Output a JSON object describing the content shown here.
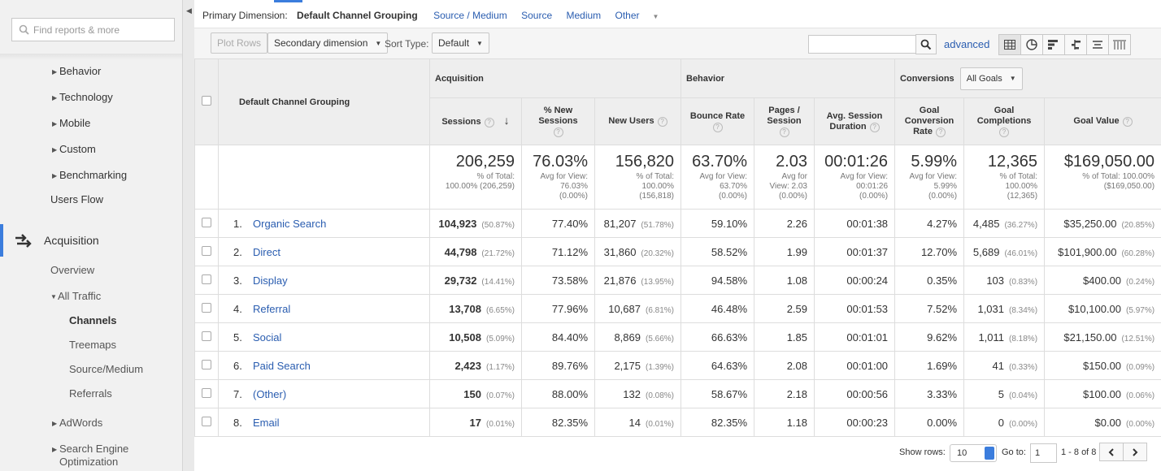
{
  "sidebar": {
    "search_placeholder": "Find reports & more",
    "items": [
      {
        "label": "Behavior"
      },
      {
        "label": "Technology"
      },
      {
        "label": "Mobile"
      },
      {
        "label": "Custom"
      },
      {
        "label": "Benchmarking"
      },
      {
        "label": "Users Flow"
      },
      {
        "label": "Acquisition"
      },
      {
        "label": "Overview"
      },
      {
        "label": "All Traffic"
      },
      {
        "label": "Channels"
      },
      {
        "label": "Treemaps"
      },
      {
        "label": "Source/Medium"
      },
      {
        "label": "Referrals"
      },
      {
        "label": "AdWords"
      },
      {
        "label": "Search Engine"
      },
      {
        "label": "Optimization"
      }
    ]
  },
  "dimension_bar": {
    "label": "Primary Dimension:",
    "current": "Default Channel Grouping",
    "options": [
      "Source / Medium",
      "Source",
      "Medium",
      "Other"
    ]
  },
  "toolbar": {
    "plot_rows": "Plot Rows",
    "secondary_dimension": "Secondary dimension",
    "sort_type_label": "Sort Type:",
    "sort_type_value": "Default",
    "advanced": "advanced"
  },
  "table": {
    "dimension_header": "Default Channel Grouping",
    "groups": {
      "acquisition": "Acquisition",
      "behavior": "Behavior",
      "conversions": "Conversions",
      "goals_select": "All Goals"
    },
    "columns": {
      "sessions": "Sessions",
      "new_sessions_1": "% New",
      "new_sessions_2": "Sessions",
      "new_users": "New Users",
      "bounce_1": "Bounce Rate",
      "pages_1": "Pages /",
      "pages_2": "Session",
      "dur_1": "Avg. Session",
      "dur_2": "Duration",
      "gcr_1": "Goal",
      "gcr_2": "Conversion",
      "gcr_3": "Rate",
      "gc_1": "Goal",
      "gc_2": "Completions",
      "gv": "Goal Value"
    },
    "totals": {
      "sessions": {
        "value": "206,259",
        "l1": "% of Total:",
        "l2": "100.00% (206,259)"
      },
      "new_sessions": {
        "value": "76.03%",
        "l1": "Avg for View:",
        "l2": "76.03%",
        "l3": "(0.00%)"
      },
      "new_users": {
        "value": "156,820",
        "l1": "% of Total:",
        "l2": "100.00%",
        "l3": "(156,818)"
      },
      "bounce": {
        "value": "63.70%",
        "l1": "Avg for View:",
        "l2": "63.70%",
        "l3": "(0.00%)"
      },
      "pages": {
        "value": "2.03",
        "l1": "Avg for",
        "l2": "View: 2.03",
        "l3": "(0.00%)"
      },
      "duration": {
        "value": "00:01:26",
        "l1": "Avg for View:",
        "l2": "00:01:26",
        "l3": "(0.00%)"
      },
      "gcr": {
        "value": "5.99%",
        "l1": "Avg for View:",
        "l2": "5.99%",
        "l3": "(0.00%)"
      },
      "gc": {
        "value": "12,365",
        "l1": "% of Total:",
        "l2": "100.00%",
        "l3": "(12,365)"
      },
      "gv": {
        "value": "$169,050.00",
        "l1": "% of Total: 100.00%",
        "l2": "($169,050.00)"
      }
    },
    "rows": [
      {
        "num": "1.",
        "name": "Organic Search",
        "sessions": "104,923",
        "sessions_pct": "(50.87%)",
        "new_sessions": "77.40%",
        "new_users": "81,207",
        "new_users_pct": "(51.78%)",
        "bounce": "59.10%",
        "pages": "2.26",
        "duration": "00:01:38",
        "gcr": "4.27%",
        "gc": "4,485",
        "gc_pct": "(36.27%)",
        "gv": "$35,250.00",
        "gv_pct": "(20.85%)"
      },
      {
        "num": "2.",
        "name": "Direct",
        "sessions": "44,798",
        "sessions_pct": "(21.72%)",
        "new_sessions": "71.12%",
        "new_users": "31,860",
        "new_users_pct": "(20.32%)",
        "bounce": "58.52%",
        "pages": "1.99",
        "duration": "00:01:37",
        "gcr": "12.70%",
        "gc": "5,689",
        "gc_pct": "(46.01%)",
        "gv": "$101,900.00",
        "gv_pct": "(60.28%)"
      },
      {
        "num": "3.",
        "name": "Display",
        "sessions": "29,732",
        "sessions_pct": "(14.41%)",
        "new_sessions": "73.58%",
        "new_users": "21,876",
        "new_users_pct": "(13.95%)",
        "bounce": "94.58%",
        "pages": "1.08",
        "duration": "00:00:24",
        "gcr": "0.35%",
        "gc": "103",
        "gc_pct": "(0.83%)",
        "gv": "$400.00",
        "gv_pct": "(0.24%)"
      },
      {
        "num": "4.",
        "name": "Referral",
        "sessions": "13,708",
        "sessions_pct": "(6.65%)",
        "new_sessions": "77.96%",
        "new_users": "10,687",
        "new_users_pct": "(6.81%)",
        "bounce": "46.48%",
        "pages": "2.59",
        "duration": "00:01:53",
        "gcr": "7.52%",
        "gc": "1,031",
        "gc_pct": "(8.34%)",
        "gv": "$10,100.00",
        "gv_pct": "(5.97%)"
      },
      {
        "num": "5.",
        "name": "Social",
        "sessions": "10,508",
        "sessions_pct": "(5.09%)",
        "new_sessions": "84.40%",
        "new_users": "8,869",
        "new_users_pct": "(5.66%)",
        "bounce": "66.63%",
        "pages": "1.85",
        "duration": "00:01:01",
        "gcr": "9.62%",
        "gc": "1,011",
        "gc_pct": "(8.18%)",
        "gv": "$21,150.00",
        "gv_pct": "(12.51%)"
      },
      {
        "num": "6.",
        "name": "Paid Search",
        "sessions": "2,423",
        "sessions_pct": "(1.17%)",
        "new_sessions": "89.76%",
        "new_users": "2,175",
        "new_users_pct": "(1.39%)",
        "bounce": "64.63%",
        "pages": "2.08",
        "duration": "00:01:00",
        "gcr": "1.69%",
        "gc": "41",
        "gc_pct": "(0.33%)",
        "gv": "$150.00",
        "gv_pct": "(0.09%)"
      },
      {
        "num": "7.",
        "name": "(Other)",
        "sessions": "150",
        "sessions_pct": "(0.07%)",
        "new_sessions": "88.00%",
        "new_users": "132",
        "new_users_pct": "(0.08%)",
        "bounce": "58.67%",
        "pages": "2.18",
        "duration": "00:00:56",
        "gcr": "3.33%",
        "gc": "5",
        "gc_pct": "(0.04%)",
        "gv": "$100.00",
        "gv_pct": "(0.06%)"
      },
      {
        "num": "8.",
        "name": "Email",
        "sessions": "17",
        "sessions_pct": "(0.01%)",
        "new_sessions": "82.35%",
        "new_users": "14",
        "new_users_pct": "(0.01%)",
        "bounce": "82.35%",
        "pages": "1.18",
        "duration": "00:00:23",
        "gcr": "0.00%",
        "gc": "0",
        "gc_pct": "(0.00%)",
        "gv": "$0.00",
        "gv_pct": "(0.00%)"
      }
    ]
  },
  "footer": {
    "show_rows_label": "Show rows:",
    "show_rows_value": "10",
    "goto_label": "Go to:",
    "goto_value": "1",
    "range": "1 - 8 of 8"
  },
  "icons": [
    "search-icon",
    "acquisition-icon",
    "sort-down-icon",
    "help-icon",
    "table-view-icon",
    "pie-view-icon",
    "bar-view-icon",
    "comparison-view-icon",
    "term-cloud-icon",
    "pivot-view-icon",
    "prev-page-icon",
    "next-page-icon"
  ],
  "colors": {
    "link": "#2a5db0",
    "accent": "#3b7ddd",
    "header_bg": "#eeeeee",
    "sidebar_bg": "#f1f1f1"
  }
}
